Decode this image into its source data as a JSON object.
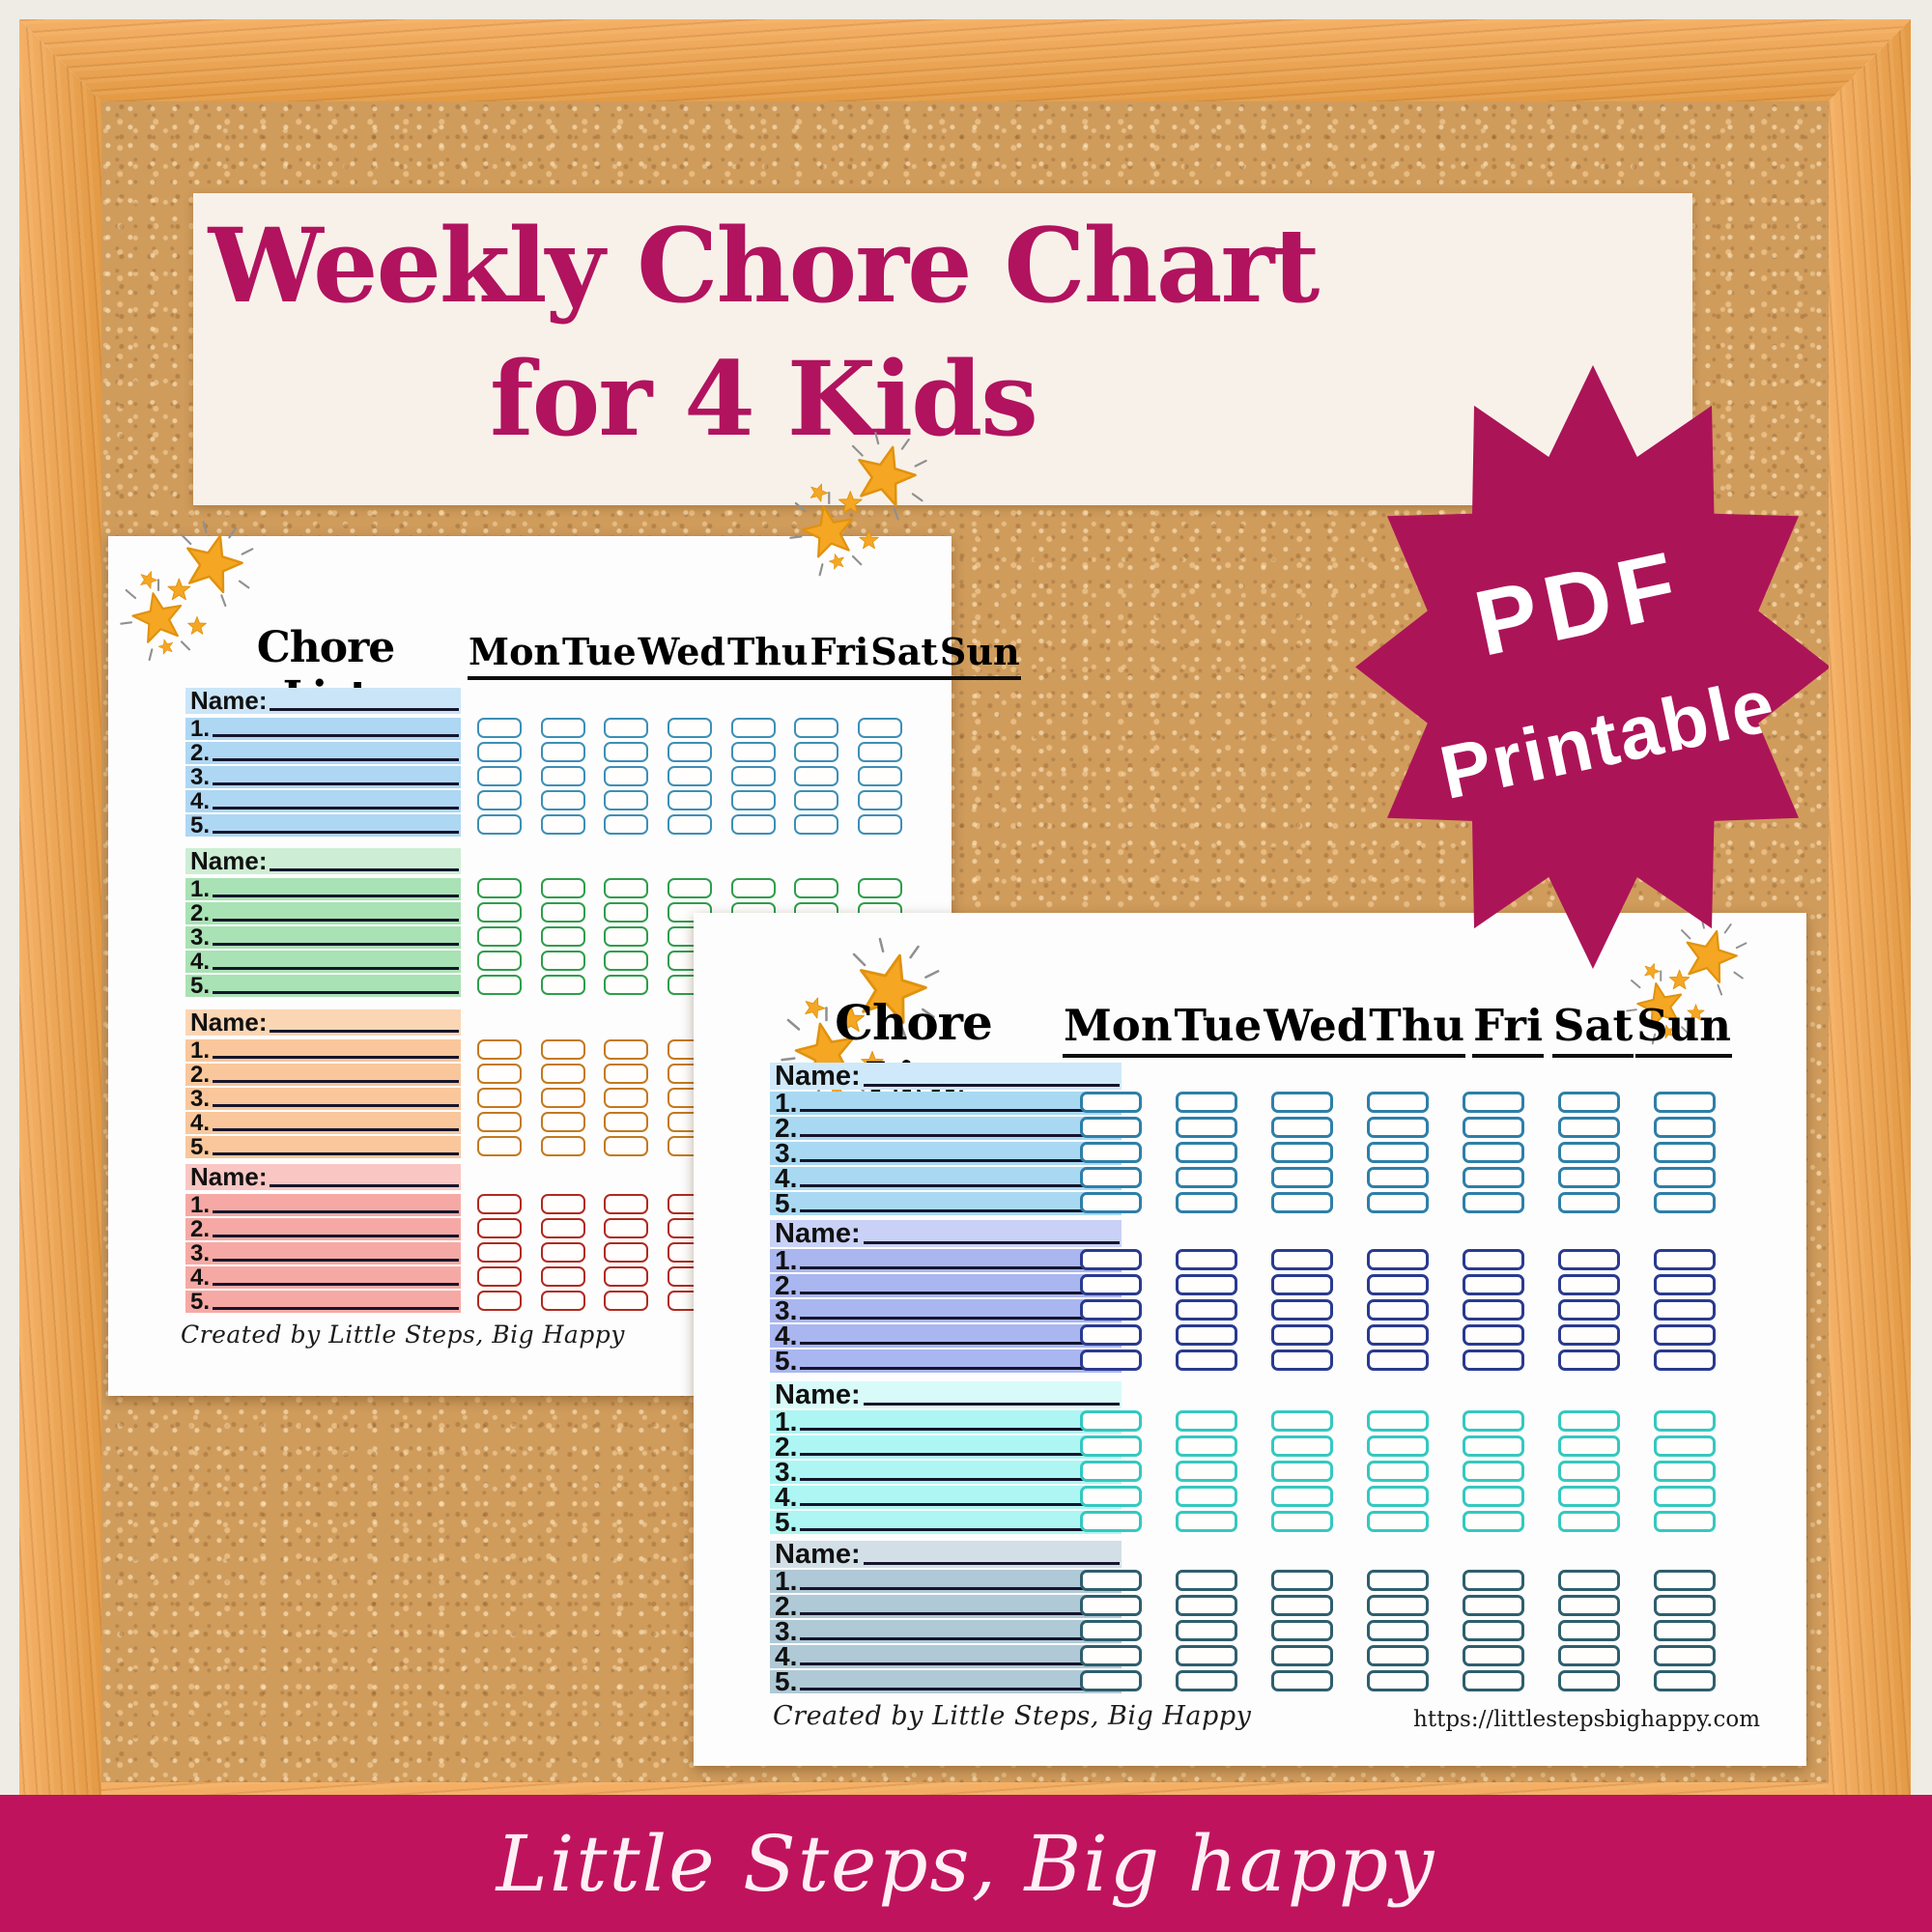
{
  "poster": {
    "banner": {
      "title_line1": "Weekly Chore Chart",
      "title_line2": "for 4 Kids",
      "bg": "#f8f1e9",
      "text_color": "#b1135f"
    },
    "badge": {
      "line1": "PDF",
      "line2": "Printable",
      "bg": "#ac1458",
      "text_color": "#ffffff"
    },
    "footer": {
      "brand": "Little Steps, Big happy",
      "bg": "#bf145d"
    }
  },
  "chart_template": {
    "header": "Chore List",
    "days": [
      "Mon",
      "Tue",
      "Wed",
      "Thu",
      "Fri",
      "Sat",
      "Sun"
    ],
    "name_label": "Name:",
    "row_numbers": [
      "1.",
      "2.",
      "3.",
      "4.",
      "5."
    ],
    "credit": "Created by Little Steps, Big Happy",
    "rows_per_child": 5,
    "children_per_page": 4
  },
  "pages": {
    "back": {
      "sections": [
        {
          "name": "blue",
          "name_bg": "#cbe5f8",
          "row_bg": "#aed7f3",
          "box_border": "#3d8fb5"
        },
        {
          "name": "green",
          "name_bg": "#cdeed4",
          "row_bg": "#a9e2b4",
          "box_border": "#2f9e4c"
        },
        {
          "name": "orange",
          "name_bg": "#fbd6b4",
          "row_bg": "#f9c79b",
          "box_border": "#c4791f"
        },
        {
          "name": "salmon",
          "name_bg": "#f9c6c3",
          "row_bg": "#f6a9a4",
          "box_border": "#b02a20"
        }
      ]
    },
    "front": {
      "url": "https://littlestepsbighappy.com",
      "sections": [
        {
          "name": "sky-blue",
          "name_bg": "#cfe9fa",
          "row_bg": "#a9d9f2",
          "box_border": "#2e7fa8"
        },
        {
          "name": "periwinkle",
          "name_bg": "#c9d1f6",
          "row_bg": "#aab6ef",
          "box_border": "#2a3a8f"
        },
        {
          "name": "aqua",
          "name_bg": "#d8fbfa",
          "row_bg": "#adf6f4",
          "box_border": "#35c8c0"
        },
        {
          "name": "steel-blue",
          "name_bg": "#d3dfe6",
          "row_bg": "#b0c9d6",
          "box_border": "#2e5f6e"
        }
      ]
    }
  },
  "icons": {
    "decorations": "sparkle-stars-icon",
    "star_fill": "#f5a623",
    "star_stroke": "#e0920e"
  }
}
